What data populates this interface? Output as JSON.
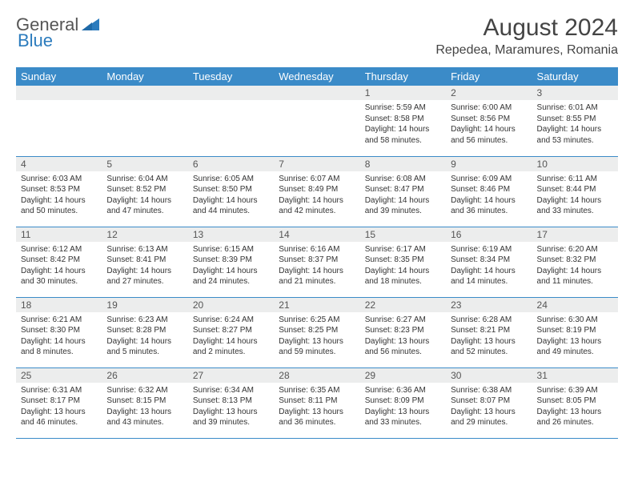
{
  "brand": {
    "part1": "General",
    "part2": "Blue"
  },
  "title": "August 2024",
  "location": "Repedea, Maramures, Romania",
  "colors": {
    "header_bg": "#3b8bc8",
    "header_text": "#ffffff",
    "daynum_bg": "#eceded",
    "border": "#3b8bc8",
    "brand_blue": "#2b7bbd",
    "brand_gray": "#555555",
    "body_text": "#333333",
    "page_bg": "#ffffff"
  },
  "typography": {
    "title_fontsize": 30,
    "location_fontsize": 16,
    "header_fontsize": 13,
    "daynum_fontsize": 12,
    "cell_fontsize": 10
  },
  "day_headers": [
    "Sunday",
    "Monday",
    "Tuesday",
    "Wednesday",
    "Thursday",
    "Friday",
    "Saturday"
  ],
  "weeks": [
    [
      {
        "n": "",
        "sr": "",
        "ss": "",
        "dl": ""
      },
      {
        "n": "",
        "sr": "",
        "ss": "",
        "dl": ""
      },
      {
        "n": "",
        "sr": "",
        "ss": "",
        "dl": ""
      },
      {
        "n": "",
        "sr": "",
        "ss": "",
        "dl": ""
      },
      {
        "n": "1",
        "sr": "Sunrise: 5:59 AM",
        "ss": "Sunset: 8:58 PM",
        "dl": "Daylight: 14 hours and 58 minutes."
      },
      {
        "n": "2",
        "sr": "Sunrise: 6:00 AM",
        "ss": "Sunset: 8:56 PM",
        "dl": "Daylight: 14 hours and 56 minutes."
      },
      {
        "n": "3",
        "sr": "Sunrise: 6:01 AM",
        "ss": "Sunset: 8:55 PM",
        "dl": "Daylight: 14 hours and 53 minutes."
      }
    ],
    [
      {
        "n": "4",
        "sr": "Sunrise: 6:03 AM",
        "ss": "Sunset: 8:53 PM",
        "dl": "Daylight: 14 hours and 50 minutes."
      },
      {
        "n": "5",
        "sr": "Sunrise: 6:04 AM",
        "ss": "Sunset: 8:52 PM",
        "dl": "Daylight: 14 hours and 47 minutes."
      },
      {
        "n": "6",
        "sr": "Sunrise: 6:05 AM",
        "ss": "Sunset: 8:50 PM",
        "dl": "Daylight: 14 hours and 44 minutes."
      },
      {
        "n": "7",
        "sr": "Sunrise: 6:07 AM",
        "ss": "Sunset: 8:49 PM",
        "dl": "Daylight: 14 hours and 42 minutes."
      },
      {
        "n": "8",
        "sr": "Sunrise: 6:08 AM",
        "ss": "Sunset: 8:47 PM",
        "dl": "Daylight: 14 hours and 39 minutes."
      },
      {
        "n": "9",
        "sr": "Sunrise: 6:09 AM",
        "ss": "Sunset: 8:46 PM",
        "dl": "Daylight: 14 hours and 36 minutes."
      },
      {
        "n": "10",
        "sr": "Sunrise: 6:11 AM",
        "ss": "Sunset: 8:44 PM",
        "dl": "Daylight: 14 hours and 33 minutes."
      }
    ],
    [
      {
        "n": "11",
        "sr": "Sunrise: 6:12 AM",
        "ss": "Sunset: 8:42 PM",
        "dl": "Daylight: 14 hours and 30 minutes."
      },
      {
        "n": "12",
        "sr": "Sunrise: 6:13 AM",
        "ss": "Sunset: 8:41 PM",
        "dl": "Daylight: 14 hours and 27 minutes."
      },
      {
        "n": "13",
        "sr": "Sunrise: 6:15 AM",
        "ss": "Sunset: 8:39 PM",
        "dl": "Daylight: 14 hours and 24 minutes."
      },
      {
        "n": "14",
        "sr": "Sunrise: 6:16 AM",
        "ss": "Sunset: 8:37 PM",
        "dl": "Daylight: 14 hours and 21 minutes."
      },
      {
        "n": "15",
        "sr": "Sunrise: 6:17 AM",
        "ss": "Sunset: 8:35 PM",
        "dl": "Daylight: 14 hours and 18 minutes."
      },
      {
        "n": "16",
        "sr": "Sunrise: 6:19 AM",
        "ss": "Sunset: 8:34 PM",
        "dl": "Daylight: 14 hours and 14 minutes."
      },
      {
        "n": "17",
        "sr": "Sunrise: 6:20 AM",
        "ss": "Sunset: 8:32 PM",
        "dl": "Daylight: 14 hours and 11 minutes."
      }
    ],
    [
      {
        "n": "18",
        "sr": "Sunrise: 6:21 AM",
        "ss": "Sunset: 8:30 PM",
        "dl": "Daylight: 14 hours and 8 minutes."
      },
      {
        "n": "19",
        "sr": "Sunrise: 6:23 AM",
        "ss": "Sunset: 8:28 PM",
        "dl": "Daylight: 14 hours and 5 minutes."
      },
      {
        "n": "20",
        "sr": "Sunrise: 6:24 AM",
        "ss": "Sunset: 8:27 PM",
        "dl": "Daylight: 14 hours and 2 minutes."
      },
      {
        "n": "21",
        "sr": "Sunrise: 6:25 AM",
        "ss": "Sunset: 8:25 PM",
        "dl": "Daylight: 13 hours and 59 minutes."
      },
      {
        "n": "22",
        "sr": "Sunrise: 6:27 AM",
        "ss": "Sunset: 8:23 PM",
        "dl": "Daylight: 13 hours and 56 minutes."
      },
      {
        "n": "23",
        "sr": "Sunrise: 6:28 AM",
        "ss": "Sunset: 8:21 PM",
        "dl": "Daylight: 13 hours and 52 minutes."
      },
      {
        "n": "24",
        "sr": "Sunrise: 6:30 AM",
        "ss": "Sunset: 8:19 PM",
        "dl": "Daylight: 13 hours and 49 minutes."
      }
    ],
    [
      {
        "n": "25",
        "sr": "Sunrise: 6:31 AM",
        "ss": "Sunset: 8:17 PM",
        "dl": "Daylight: 13 hours and 46 minutes."
      },
      {
        "n": "26",
        "sr": "Sunrise: 6:32 AM",
        "ss": "Sunset: 8:15 PM",
        "dl": "Daylight: 13 hours and 43 minutes."
      },
      {
        "n": "27",
        "sr": "Sunrise: 6:34 AM",
        "ss": "Sunset: 8:13 PM",
        "dl": "Daylight: 13 hours and 39 minutes."
      },
      {
        "n": "28",
        "sr": "Sunrise: 6:35 AM",
        "ss": "Sunset: 8:11 PM",
        "dl": "Daylight: 13 hours and 36 minutes."
      },
      {
        "n": "29",
        "sr": "Sunrise: 6:36 AM",
        "ss": "Sunset: 8:09 PM",
        "dl": "Daylight: 13 hours and 33 minutes."
      },
      {
        "n": "30",
        "sr": "Sunrise: 6:38 AM",
        "ss": "Sunset: 8:07 PM",
        "dl": "Daylight: 13 hours and 29 minutes."
      },
      {
        "n": "31",
        "sr": "Sunrise: 6:39 AM",
        "ss": "Sunset: 8:05 PM",
        "dl": "Daylight: 13 hours and 26 minutes."
      }
    ]
  ]
}
